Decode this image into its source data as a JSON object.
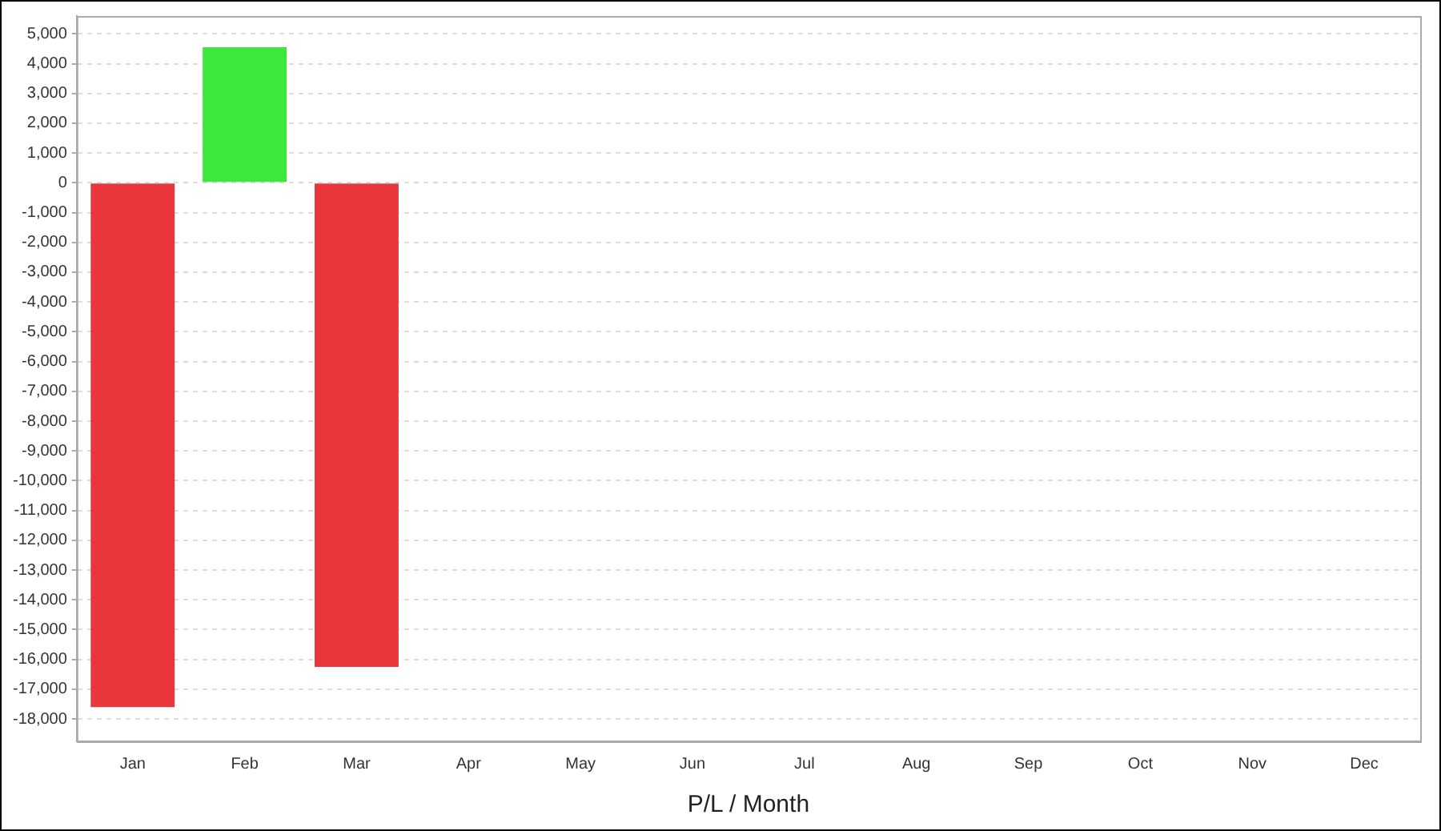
{
  "chart_data": {
    "type": "bar",
    "xlabel": "P/L / Month",
    "categories": [
      "Jan",
      "Feb",
      "Mar",
      "Apr",
      "May",
      "Jun",
      "Jul",
      "Aug",
      "Sep",
      "Oct",
      "Nov",
      "Dec"
    ],
    "values": [
      -17600,
      4550,
      -16250,
      null,
      null,
      null,
      null,
      null,
      null,
      null,
      null,
      null
    ],
    "colors": [
      "#e8363c",
      "#3be83b",
      "#e8363c",
      "#e8363c",
      "#e8363c",
      "#e8363c",
      "#e8363c",
      "#e8363c",
      "#e8363c",
      "#e8363c",
      "#e8363c",
      "#e8363c"
    ],
    "ylim": [
      -18750,
      5600
    ],
    "yticks": [
      {
        "value": -18000,
        "label": "-18,000"
      },
      {
        "value": -17000,
        "label": "-17,000"
      },
      {
        "value": -16000,
        "label": "-16,000"
      },
      {
        "value": -15000,
        "label": "-15,000"
      },
      {
        "value": -14000,
        "label": "-14,000"
      },
      {
        "value": -13000,
        "label": "-13,000"
      },
      {
        "value": -12000,
        "label": "-12,000"
      },
      {
        "value": -11000,
        "label": "-11,000"
      },
      {
        "value": -10000,
        "label": "-10,000"
      },
      {
        "value": -9000,
        "label": "-9,000"
      },
      {
        "value": -8000,
        "label": "-8,000"
      },
      {
        "value": -7000,
        "label": "-7,000"
      },
      {
        "value": -6000,
        "label": "-6,000"
      },
      {
        "value": -5000,
        "label": "-5,000"
      },
      {
        "value": -4000,
        "label": "-4,000"
      },
      {
        "value": -3000,
        "label": "-3,000"
      },
      {
        "value": -2000,
        "label": "-2,000"
      },
      {
        "value": -1000,
        "label": "-1,000"
      },
      0,
      {
        "value": 1000,
        "label": "1,000"
      },
      {
        "value": 2000,
        "label": "2,000"
      },
      {
        "value": 3000,
        "label": "3,000"
      },
      {
        "value": 4000,
        "label": "4,000"
      },
      {
        "value": 5000,
        "label": "5,000"
      }
    ],
    "grid": "y",
    "legend": false
  }
}
